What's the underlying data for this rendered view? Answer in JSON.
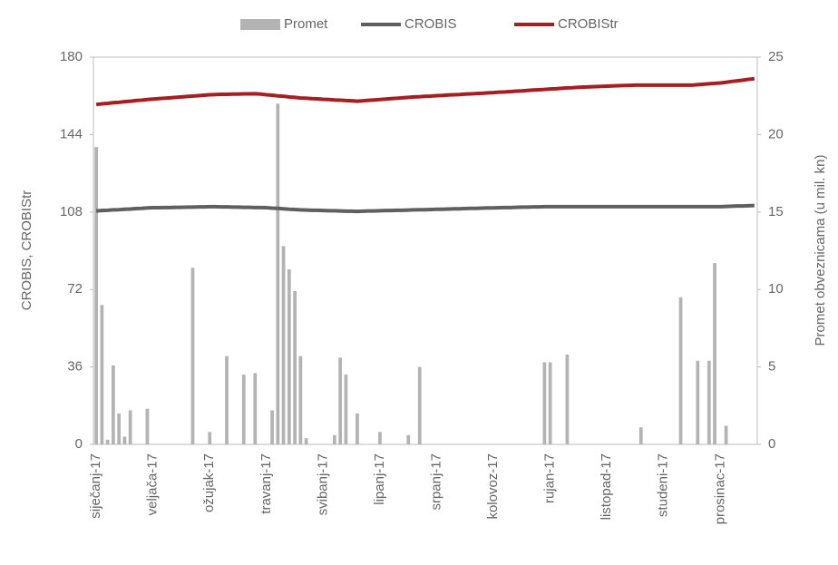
{
  "chart_data": {
    "type": "bar-line",
    "legend": "top",
    "y_label": "CROBIS, CROBIStr",
    "y2_label": "Promet obveznicama (u mil. kn)",
    "categories": [
      "siječanj-17",
      null,
      null,
      null,
      null,
      null,
      null,
      null,
      null,
      null,
      "veljača-17",
      null,
      null,
      null,
      null,
      null,
      null,
      null,
      null,
      null,
      "ožujak-17",
      null,
      null,
      null,
      null,
      null,
      null,
      null,
      null,
      null,
      "travanj-17",
      null,
      null,
      null,
      null,
      null,
      null,
      null,
      null,
      null,
      "svibanj-17",
      null,
      null,
      null,
      null,
      null,
      null,
      null,
      null,
      null,
      "lipanj-17",
      null,
      null,
      null,
      null,
      null,
      null,
      null,
      null,
      null,
      "srpanj-17",
      null,
      null,
      null,
      null,
      null,
      null,
      null,
      null,
      null,
      "kolovoz-17",
      null,
      null,
      null,
      null,
      null,
      null,
      null,
      null,
      null,
      "rujan-17",
      null,
      null,
      null,
      null,
      null,
      null,
      null,
      null,
      null,
      "listopad-17",
      null,
      null,
      null,
      null,
      null,
      null,
      null,
      null,
      null,
      "studeni-17",
      null,
      null,
      null,
      null,
      null,
      null,
      null,
      null,
      null,
      "prosinac-17",
      null,
      null,
      null,
      null,
      null,
      null
    ],
    "series": [
      {
        "name": "Promet",
        "type": "bar",
        "axis": "y2",
        "color": "#b3b3b3",
        "values": [
          19.2,
          9,
          0.3,
          5.1,
          2,
          0.5,
          2.2,
          0,
          0,
          2.3,
          0,
          0,
          0,
          0,
          0,
          0,
          0,
          11.4,
          0,
          0,
          0.8,
          0,
          0,
          5.7,
          0,
          0,
          4.5,
          0,
          4.6,
          0,
          0,
          2.2,
          22,
          12.8,
          11.3,
          9.9,
          5.7,
          0.4,
          0,
          0,
          0,
          0,
          0.6,
          5.6,
          4.5,
          0,
          2,
          0,
          0,
          0,
          0.8,
          0,
          0,
          0,
          0,
          0.6,
          0,
          5,
          0,
          0,
          0,
          0,
          0,
          0,
          0,
          0,
          0,
          0,
          0,
          0,
          0,
          0,
          0,
          0,
          0,
          0,
          0,
          0,
          0,
          5.3,
          5.3,
          0,
          0,
          5.8,
          0,
          0,
          0,
          0,
          0,
          0,
          0,
          0,
          0,
          0,
          0,
          0,
          1.1,
          0,
          0,
          0,
          0,
          0,
          0,
          9.5,
          0,
          0,
          5.4,
          0,
          5.4,
          11.7,
          0,
          1.2,
          0,
          0,
          0,
          0,
          0
        ]
      },
      {
        "name": "CROBIS",
        "type": "line",
        "color": "#5f5f5f",
        "values": [
          108.5,
          108.7,
          108.8,
          109,
          109.1,
          109.3,
          109.4,
          109.6,
          109.7,
          109.9,
          110,
          110,
          110.1,
          110.1,
          110.2,
          110.2,
          110.3,
          110.3,
          110.4,
          110.4,
          110.5,
          110.5,
          110.4,
          110.4,
          110.3,
          110.3,
          110.2,
          110.2,
          110.1,
          110.1,
          110,
          109.8,
          109.7,
          109.5,
          109.3,
          109.2,
          109,
          108.9,
          108.8,
          108.8,
          108.7,
          108.6,
          108.6,
          108.5,
          108.4,
          108.4,
          108.3,
          108.4,
          108.5,
          108.5,
          108.6,
          108.7,
          108.7,
          108.8,
          108.8,
          108.9,
          109,
          109.1,
          109.1,
          109.2,
          109.3,
          109.3,
          109.4,
          109.5,
          109.5,
          109.6,
          109.7,
          109.7,
          109.8,
          109.9,
          109.9,
          110,
          110.1,
          110.1,
          110.2,
          110.3,
          110.3,
          110.4,
          110.4,
          110.5,
          110.5,
          110.5,
          110.5,
          110.5,
          110.5,
          110.5,
          110.5,
          110.5,
          110.5,
          110.5,
          110.5,
          110.5,
          110.5,
          110.5,
          110.5,
          110.5,
          110.5,
          110.5,
          110.5,
          110.5,
          110.5,
          110.5,
          110.5,
          110.5,
          110.5,
          110.5,
          110.5,
          110.5,
          110.5,
          110.5,
          110.5,
          110.6,
          110.7,
          110.8,
          110.8,
          110.9,
          111
        ]
      },
      {
        "name": "CROBIStr",
        "type": "line",
        "color": "#a61e22",
        "values": [
          158,
          158.3,
          158.5,
          158.8,
          159,
          159.3,
          159.5,
          159.8,
          160,
          160.3,
          160.5,
          160.7,
          160.9,
          161.1,
          161.3,
          161.5,
          161.7,
          161.9,
          162.1,
          162.3,
          162.5,
          162.6,
          162.7,
          162.7,
          162.8,
          162.8,
          162.9,
          162.9,
          163,
          162.8,
          162.5,
          162.3,
          162,
          161.8,
          161.5,
          161.3,
          161,
          160.9,
          160.7,
          160.6,
          160.4,
          160.3,
          160.1,
          160,
          159.8,
          159.7,
          159.5,
          159.7,
          159.9,
          160.1,
          160.3,
          160.5,
          160.7,
          160.9,
          161.1,
          161.3,
          161.5,
          161.6,
          161.8,
          161.9,
          162.1,
          162.2,
          162.4,
          162.5,
          162.6,
          162.8,
          162.9,
          163.1,
          163.2,
          163.4,
          163.5,
          163.7,
          163.8,
          164,
          164.2,
          164.3,
          164.5,
          164.7,
          164.8,
          165,
          165.2,
          165.3,
          165.5,
          165.7,
          165.8,
          166,
          166.1,
          166.2,
          166.3,
          166.4,
          166.5,
          166.6,
          166.7,
          166.8,
          166.9,
          167,
          167,
          167,
          167,
          167,
          167,
          167,
          167,
          167,
          167,
          167,
          167.2,
          167.4,
          167.6,
          167.8,
          168,
          168.3,
          168.7,
          169,
          169.3,
          169.7,
          170
        ]
      }
    ],
    "ylim": [
      0,
      180
    ],
    "yticks": [
      0,
      36,
      72,
      108,
      144,
      180
    ],
    "y2lim": [
      0,
      25
    ],
    "y2ticks": [
      0,
      5,
      10,
      15,
      20,
      25
    ],
    "grid": false
  }
}
